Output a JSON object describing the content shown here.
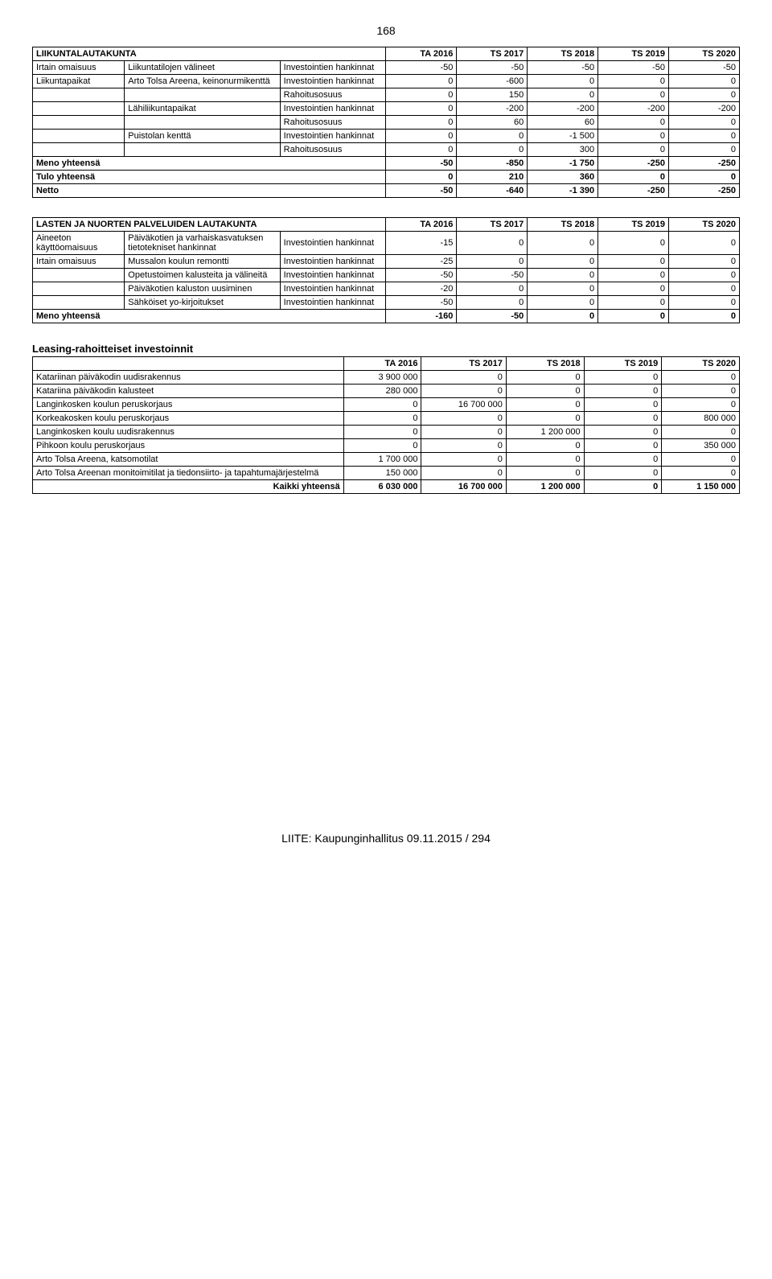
{
  "page_number": "168",
  "footer": "LIITE: Kaupunginhallitus 09.11.2015 / 294",
  "year_headers": [
    "TA 2016",
    "TS 2017",
    "TS 2018",
    "TS 2019",
    "TS 2020"
  ],
  "table1": {
    "title": "LIIKUNTALAUTAKUNTA",
    "rows": [
      {
        "c1": "Irtain omaisuus",
        "c2": "Liikuntatilojen välineet",
        "c3": "Investointien hankinnat",
        "v": [
          "-50",
          "-50",
          "-50",
          "-50",
          "-50"
        ]
      },
      {
        "c1": "Liikuntapaikat",
        "c2": "Arto Tolsa Areena, keinonurmikenttä",
        "c3": "Investointien hankinnat",
        "v": [
          "0",
          "-600",
          "0",
          "0",
          "0"
        ]
      },
      {
        "c1": "",
        "c2": "",
        "c3": "Rahoitusosuus",
        "v": [
          "0",
          "150",
          "0",
          "0",
          "0"
        ]
      },
      {
        "c1": "",
        "c2": "Lähiliikuntapaikat",
        "c3": "Investointien hankinnat",
        "v": [
          "0",
          "-200",
          "-200",
          "-200",
          "-200"
        ]
      },
      {
        "c1": "",
        "c2": "",
        "c3": "Rahoitusosuus",
        "v": [
          "0",
          "60",
          "60",
          "0",
          "0"
        ]
      },
      {
        "c1": "",
        "c2": "Puistolan kenttä",
        "c3": "Investointien hankinnat",
        "v": [
          "0",
          "0",
          "-1 500",
          "0",
          "0"
        ]
      },
      {
        "c1": "",
        "c2": "",
        "c3": "Rahoitusosuus",
        "v": [
          "0",
          "0",
          "300",
          "0",
          "0"
        ]
      }
    ],
    "totals": [
      {
        "label": "Meno yhteensä",
        "v": [
          "-50",
          "-850",
          "-1 750",
          "-250",
          "-250"
        ]
      },
      {
        "label": "Tulo yhteensä",
        "v": [
          "0",
          "210",
          "360",
          "0",
          "0"
        ]
      },
      {
        "label": "Netto",
        "v": [
          "-50",
          "-640",
          "-1 390",
          "-250",
          "-250"
        ]
      }
    ]
  },
  "table2": {
    "title": "LASTEN JA NUORTEN PALVELUIDEN LAUTAKUNTA",
    "rows": [
      {
        "c1": "Aineeton käyttöomaisuus",
        "c2": "Päiväkotien ja varhaiskasvatuksen tietotekniset hankinnat",
        "c3": "Investointien hankinnat",
        "v": [
          "-15",
          "0",
          "0",
          "0",
          "0"
        ]
      },
      {
        "c1": "Irtain omaisuus",
        "c2": "Mussalon koulun remontti",
        "c3": "Investointien hankinnat",
        "v": [
          "-25",
          "0",
          "0",
          "0",
          "0"
        ]
      },
      {
        "c1": "",
        "c2": "Opetustoimen kalusteita ja välineitä",
        "c3": "Investointien hankinnat",
        "v": [
          "-50",
          "-50",
          "0",
          "0",
          "0"
        ]
      },
      {
        "c1": "",
        "c2": "Päiväkotien kaluston uusiminen",
        "c3": "Investointien hankinnat",
        "v": [
          "-20",
          "0",
          "0",
          "0",
          "0"
        ]
      },
      {
        "c1": "",
        "c2": "Sähköiset yo-kirjoitukset",
        "c3": "Investointien hankinnat",
        "v": [
          "-50",
          "0",
          "0",
          "0",
          "0"
        ]
      }
    ],
    "totals": [
      {
        "label": "Meno yhteensä",
        "v": [
          "-160",
          "-50",
          "0",
          "0",
          "0"
        ]
      }
    ]
  },
  "leasing": {
    "heading": "Leasing-rahoitteiset investoinnit",
    "headers": [
      "TA 2016",
      "TS 2017",
      "TS 2018",
      "TS 2019",
      "TS 2020"
    ],
    "rows": [
      {
        "label": "Katariinan päiväkodin uudisrakennus",
        "v": [
          "3 900 000",
          "0",
          "0",
          "0",
          "0"
        ]
      },
      {
        "label": "Katariina päiväkodin kalusteet",
        "v": [
          "280 000",
          "0",
          "0",
          "0",
          "0"
        ]
      },
      {
        "label": "Langinkosken koulun peruskorjaus",
        "v": [
          "0",
          "16 700 000",
          "0",
          "0",
          "0"
        ]
      },
      {
        "label": "Korkeakosken koulu peruskorjaus",
        "v": [
          "0",
          "0",
          "0",
          "0",
          "800 000"
        ]
      },
      {
        "label": "Langinkosken koulu uudisrakennus",
        "v": [
          "0",
          "0",
          "1 200 000",
          "0",
          "0"
        ]
      },
      {
        "label": "Pihkoon koulu peruskorjaus",
        "v": [
          "0",
          "0",
          "0",
          "0",
          "350 000"
        ]
      },
      {
        "label": "Arto Tolsa Areena, katsomotilat",
        "v": [
          "1 700 000",
          "0",
          "0",
          "0",
          "0"
        ]
      },
      {
        "label": "Arto Tolsa Areenan monitoimitilat ja tiedonsiirto- ja tapahtumajärjestelmä",
        "v": [
          "150 000",
          "0",
          "0",
          "0",
          "0"
        ]
      }
    ],
    "total": {
      "label": "Kaikki yhteensä",
      "v": [
        "6 030 000",
        "16 700 000",
        "1 200 000",
        "0",
        "1 150 000"
      ]
    }
  }
}
